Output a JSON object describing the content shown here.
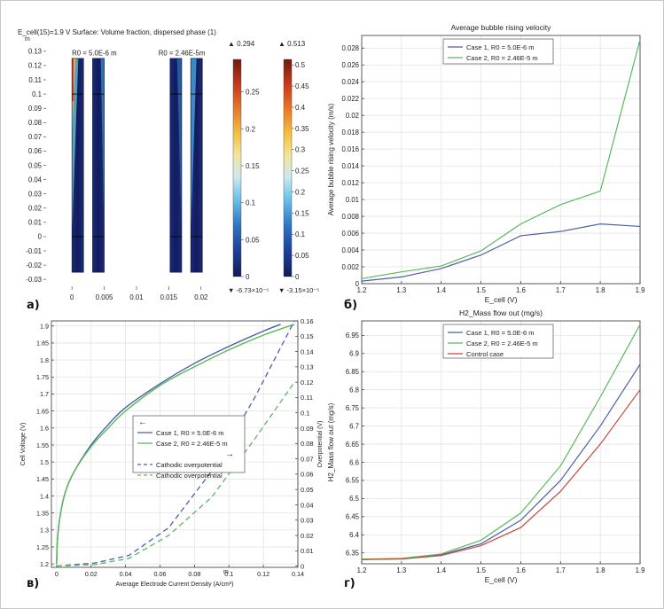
{
  "panel_labels": [
    "а)",
    "б)",
    "в)",
    "г)"
  ],
  "chart_data": [
    {
      "type": "heatmap",
      "title": "E_cell(15)=1.9 V Surface: Volume fraction, dispersed phase (1)",
      "y_unit": "m",
      "x_unit": "m",
      "x_ticks": [
        "0",
        "0.005",
        "0.01",
        "0.015",
        "0.02"
      ],
      "y_ticks": [
        "0.13",
        "0.12",
        "0.11",
        "0.1",
        "0.09",
        "0.08",
        "0.07",
        "0.06",
        "0.05",
        "0.04",
        "0.03",
        "0.02",
        "0.01",
        "0",
        "-0.01",
        "-0.02",
        "-0.03"
      ],
      "xlim": [
        -0.004,
        0.0225
      ],
      "ylim": [
        -0.033,
        0.138
      ],
      "annotations": [
        "R0 = 5.0E-6 m",
        "R0 = 2.46E-5m"
      ],
      "colorbar_1": {
        "max_label": "▲ 0.294",
        "min_label": "▼ -6.73×10⁻⁵",
        "ticks": [
          "0.25",
          "0.2",
          "0.15",
          "0.1",
          "0.05",
          "0"
        ],
        "tick_values": [
          0.25,
          0.2,
          0.15,
          0.1,
          0.05,
          0
        ],
        "range": [
          0,
          0.294
        ]
      },
      "colorbar_2": {
        "max_label": "▲ 0.513",
        "min_label": "▼ -3.15×10⁻⁵",
        "ticks": [
          "0.5",
          "0.45",
          "0.4",
          "0.35",
          "0.3",
          "0.25",
          "0.2",
          "0.15",
          "0.1",
          "0.05",
          "0"
        ],
        "tick_values": [
          0.5,
          0.45,
          0.4,
          0.35,
          0.3,
          0.25,
          0.2,
          0.15,
          0.1,
          0.05,
          0
        ],
        "range": [
          0,
          0.513
        ]
      }
    },
    {
      "type": "line",
      "title": "Average bubble rising velocity",
      "xlabel": "E_cell (V)",
      "ylabel": "Average bubble rising velocity (m/s)",
      "xlim": [
        1.2,
        1.9
      ],
      "ylim": [
        0,
        0.0295
      ],
      "x_ticks": [
        "1.2",
        "1.3",
        "1.4",
        "1.5",
        "1.6",
        "1.7",
        "1.8",
        "1.9"
      ],
      "y_ticks": [
        "0",
        "0.002",
        "0.004",
        "0.006",
        "0.008",
        "0.01",
        "0.012",
        "0.014",
        "0.016",
        "0.018",
        "0.02",
        "0.022",
        "0.024",
        "0.026",
        "0.028"
      ],
      "legend_position": "top-left",
      "series": [
        {
          "name": "Case 1, R0 = 5.0E-6 m",
          "color": "#4a5fa8",
          "x": [
            1.2,
            1.3,
            1.4,
            1.5,
            1.6,
            1.7,
            1.8,
            1.9
          ],
          "y": [
            0.0003,
            0.0008,
            0.0018,
            0.0034,
            0.0057,
            0.0062,
            0.0071,
            0.0068
          ]
        },
        {
          "name": "Case 2, R0 = 2.46E-5 m",
          "color": "#5ab85a",
          "x": [
            1.2,
            1.3,
            1.4,
            1.5,
            1.6,
            1.7,
            1.8,
            1.9
          ],
          "y": [
            0.0006,
            0.0014,
            0.0021,
            0.0039,
            0.0071,
            0.0094,
            0.011,
            0.029
          ]
        }
      ]
    },
    {
      "type": "line",
      "xlabel": "Average Electrode Current Density (A/cm²)",
      "ylabel": "Cell Voltage (V)",
      "y2label": "Overpotential (V)",
      "xlim": [
        -0.003,
        0.14
      ],
      "ylim": [
        1.19,
        1.915
      ],
      "y2lim": [
        -0.0008,
        0.16
      ],
      "x_ticks": [
        "0",
        "0.02",
        "0.04",
        "0.06",
        "0.08",
        "0.1",
        "0.12",
        "0.14"
      ],
      "y_ticks": [
        "1.2",
        "1.25",
        "1.3",
        "1.35",
        "1.4",
        "1.45",
        "1.5",
        "1.55",
        "1.6",
        "1.65",
        "1.7",
        "1.75",
        "1.8",
        "1.85",
        "1.9"
      ],
      "y2_ticks": [
        "0",
        "0.01",
        "0.02",
        "0.03",
        "0.04",
        "0.05",
        "0.06",
        "0.07",
        "0.08",
        "0.09",
        "0.1",
        "0.11",
        "0.12",
        "0.13",
        "0.14",
        "0.15",
        "0.16"
      ],
      "legend_position": "center-right",
      "series": [
        {
          "name": "Case 1, R0 = 5.0E-6 m",
          "color": "#4a5fa8",
          "axis": "left",
          "dash": false,
          "x": [
            0,
            0.0005,
            0.002,
            0.005,
            0.01,
            0.02,
            0.03,
            0.04,
            0.06,
            0.08,
            0.1,
            0.12,
            0.13
          ],
          "y": [
            1.2,
            1.27,
            1.34,
            1.41,
            1.47,
            1.55,
            1.61,
            1.66,
            1.73,
            1.79,
            1.84,
            1.885,
            1.905
          ]
        },
        {
          "name": "Case 2, R0 = 2.46E-5 m",
          "color": "#5ab85a",
          "axis": "left",
          "dash": false,
          "x": [
            0,
            0.0005,
            0.002,
            0.005,
            0.01,
            0.02,
            0.03,
            0.04,
            0.06,
            0.08,
            0.1,
            0.12,
            0.138
          ],
          "y": [
            1.2,
            1.27,
            1.34,
            1.41,
            1.47,
            1.545,
            1.6,
            1.65,
            1.725,
            1.78,
            1.83,
            1.873,
            1.905
          ]
        },
        {
          "name": "Cathodic overpotential",
          "color": "#4a5fa8",
          "axis": "right",
          "dash": true,
          "x": [
            0,
            0.022,
            0.042,
            0.065,
            0.09,
            0.115,
            0.138
          ],
          "y": [
            0,
            0.002,
            0.007,
            0.025,
            0.062,
            0.11,
            0.16
          ]
        },
        {
          "name": "Cathodic overpotential",
          "color": "#5ab85a",
          "axis": "right",
          "dash": true,
          "x": [
            0,
            0.022,
            0.042,
            0.065,
            0.09,
            0.115,
            0.138
          ],
          "y": [
            0,
            0.001,
            0.005,
            0.02,
            0.045,
            0.083,
            0.12
          ]
        }
      ],
      "legend_arrows": [
        "←",
        "→"
      ]
    },
    {
      "type": "line",
      "title": "H2_Mass flow out (mg/s)",
      "xlabel": "E_cell (V)",
      "ylabel": "H2_Mass flow out (mg/s)",
      "xlim": [
        1.2,
        1.9
      ],
      "ylim": [
        6.32,
        6.99
      ],
      "x_ticks": [
        "1.2",
        "1.3",
        "1.4",
        "1.5",
        "1.6",
        "1.7",
        "1.8",
        "1.9"
      ],
      "y_ticks": [
        "6.35",
        "6.4",
        "6.45",
        "6.5",
        "6.55",
        "6.6",
        "6.65",
        "6.7",
        "6.75",
        "6.8",
        "6.85",
        "6.9",
        "6.95"
      ],
      "legend_position": "top-left",
      "series": [
        {
          "name": "Case 1, R0 = 5.0E-6 m",
          "color": "#4a5fa8",
          "x": [
            1.2,
            1.3,
            1.4,
            1.5,
            1.6,
            1.7,
            1.8,
            1.9
          ],
          "y": [
            6.332,
            6.334,
            6.345,
            6.375,
            6.44,
            6.55,
            6.7,
            6.87
          ]
        },
        {
          "name": "Case 2, R0 = 2.46E-5 m",
          "color": "#5ab85a",
          "x": [
            1.2,
            1.3,
            1.4,
            1.5,
            1.6,
            1.7,
            1.8,
            1.9
          ],
          "y": [
            6.333,
            6.335,
            6.347,
            6.385,
            6.46,
            6.59,
            6.78,
            6.98
          ]
        },
        {
          "name": "Control case",
          "color": "#c8463c",
          "x": [
            1.2,
            1.3,
            1.4,
            1.5,
            1.6,
            1.7,
            1.8,
            1.9
          ],
          "y": [
            6.332,
            6.333,
            6.343,
            6.37,
            6.42,
            6.52,
            6.65,
            6.8
          ]
        }
      ]
    }
  ]
}
